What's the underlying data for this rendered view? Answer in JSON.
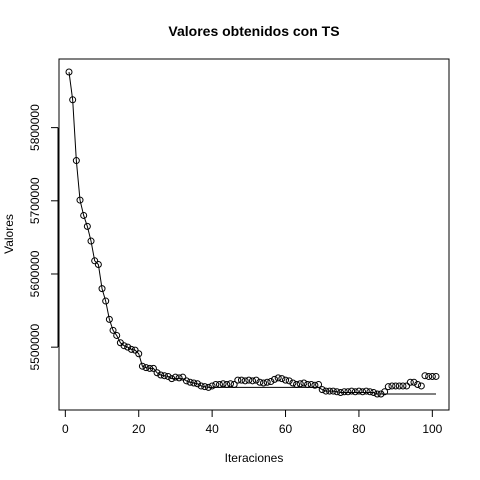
{
  "chart_data": {
    "type": "line",
    "title": "Valores obtenidos con TS",
    "xlabel": "Iteraciones",
    "ylabel": "Valores",
    "xlim": [
      1,
      101
    ],
    "ylim": [
      5436000,
      5876000
    ],
    "x_ticks": [
      0,
      20,
      40,
      60,
      80,
      100
    ],
    "x_tick_labels": [
      "0",
      "20",
      "40",
      "60",
      "80",
      "100"
    ],
    "y_ticks": [
      5500000,
      5600000,
      5700000,
      5800000
    ],
    "y_tick_labels": [
      "5500000",
      "5600000",
      "5700000",
      "5800000"
    ],
    "grid": false,
    "series": [
      {
        "style": "points",
        "x": [
          1,
          2,
          3,
          4,
          5,
          6,
          7,
          8,
          9,
          10,
          11,
          12,
          13,
          14,
          15,
          16,
          17,
          18,
          19,
          20,
          21,
          22,
          23,
          24,
          25,
          26,
          27,
          28,
          29,
          30,
          31,
          32,
          33,
          34,
          35,
          36,
          37,
          38,
          39,
          40,
          41,
          42,
          43,
          44,
          45,
          46,
          47,
          48,
          49,
          50,
          51,
          52,
          53,
          54,
          55,
          56,
          57,
          58,
          59,
          60,
          61,
          62,
          63,
          64,
          65,
          66,
          67,
          68,
          69,
          70,
          71,
          72,
          73,
          74,
          75,
          76,
          77,
          78,
          79,
          80,
          81,
          82,
          83,
          84,
          85,
          86,
          87,
          88,
          89,
          90,
          91,
          92,
          93,
          94,
          95,
          96,
          97,
          98,
          99,
          100,
          101
        ],
        "values": [
          5876000,
          5838000,
          5755000,
          5701000,
          5680000,
          5665000,
          5645000,
          5618000,
          5613000,
          5580000,
          5563000,
          5538000,
          5523000,
          5516000,
          5506000,
          5502000,
          5500000,
          5497000,
          5496000,
          5491000,
          5474000,
          5472000,
          5471000,
          5471000,
          5465000,
          5462000,
          5461000,
          5460000,
          5457000,
          5459000,
          5458000,
          5459000,
          5454000,
          5452000,
          5451000,
          5450000,
          5447000,
          5446000,
          5445000,
          5447000,
          5449000,
          5449000,
          5450000,
          5449000,
          5450000,
          5449000,
          5455000,
          5455000,
          5454000,
          5455000,
          5454000,
          5455000,
          5452000,
          5451000,
          5452000,
          5453000,
          5456000,
          5458000,
          5457000,
          5455000,
          5454000,
          5451000,
          5449000,
          5450000,
          5451000,
          5449000,
          5449000,
          5448000,
          5449000,
          5442000,
          5440000,
          5440000,
          5440000,
          5439000,
          5438000,
          5439000,
          5439000,
          5440000,
          5439000,
          5440000,
          5439000,
          5440000,
          5439000,
          5438000,
          5436000,
          5436000,
          5439000,
          5446000,
          5447000,
          5447000,
          5447000,
          5447000,
          5447000,
          5452000,
          5452000,
          5449000,
          5447000,
          5461000,
          5460000,
          5460000,
          5460000
        ]
      },
      {
        "style": "line",
        "x": [
          1,
          2,
          3,
          4,
          5,
          6,
          7,
          8,
          9,
          10,
          11,
          12,
          13,
          14,
          15,
          16,
          17,
          18,
          19,
          20,
          21,
          22,
          23,
          24,
          25,
          26,
          27,
          28,
          29,
          30,
          31,
          32,
          33,
          34,
          35,
          36,
          37,
          38,
          39,
          40,
          41,
          42,
          43,
          44,
          45,
          46,
          47,
          48,
          49,
          50,
          51,
          52,
          53,
          54,
          55,
          56,
          57,
          58,
          59,
          60,
          61,
          62,
          63,
          64,
          65,
          66,
          67,
          68,
          69,
          70,
          71,
          72,
          73,
          74,
          75,
          76,
          77,
          78,
          79,
          80,
          81,
          82,
          83,
          84,
          85,
          86,
          87,
          88,
          89,
          90,
          91,
          92,
          93,
          94,
          95,
          96,
          97,
          98,
          99,
          100,
          101
        ],
        "values": [
          5876000,
          5838000,
          5755000,
          5701000,
          5680000,
          5665000,
          5645000,
          5618000,
          5613000,
          5580000,
          5563000,
          5538000,
          5523000,
          5516000,
          5506000,
          5502000,
          5500000,
          5497000,
          5496000,
          5491000,
          5474000,
          5472000,
          5471000,
          5471000,
          5465000,
          5462000,
          5461000,
          5460000,
          5457000,
          5457000,
          5457000,
          5457000,
          5454000,
          5452000,
          5451000,
          5450000,
          5447000,
          5446000,
          5445000,
          5445000,
          5445000,
          5445000,
          5445000,
          5445000,
          5445000,
          5445000,
          5445000,
          5445000,
          5445000,
          5445000,
          5445000,
          5445000,
          5445000,
          5445000,
          5445000,
          5445000,
          5445000,
          5445000,
          5445000,
          5445000,
          5445000,
          5445000,
          5445000,
          5445000,
          5445000,
          5445000,
          5445000,
          5445000,
          5445000,
          5442000,
          5440000,
          5440000,
          5440000,
          5439000,
          5438000,
          5438000,
          5438000,
          5438000,
          5438000,
          5438000,
          5438000,
          5438000,
          5438000,
          5438000,
          5436000,
          5436000,
          5436000,
          5436000,
          5436000,
          5436000,
          5436000,
          5436000,
          5436000,
          5436000,
          5436000,
          5436000,
          5436000,
          5436000,
          5436000,
          5436000,
          5436000
        ]
      }
    ]
  }
}
